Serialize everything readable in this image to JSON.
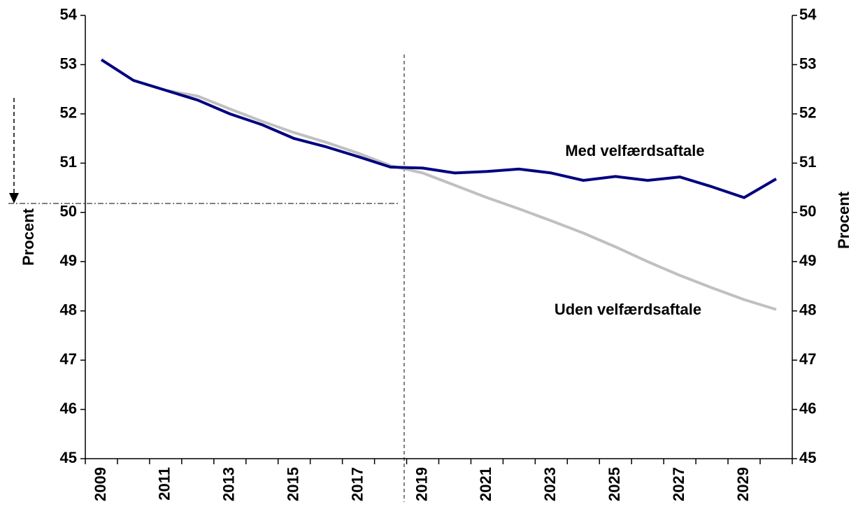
{
  "chart_data": {
    "type": "line",
    "categories": [
      "2009",
      null,
      "2011",
      null,
      "2013",
      null,
      "2015",
      null,
      "2017",
      null,
      "2019",
      null,
      "2021",
      null,
      "2023",
      null,
      "2025",
      null,
      "2027",
      null,
      "2029",
      null
    ],
    "series": [
      {
        "name": "Med velfærdsaftale",
        "color": "#000080",
        "values": [
          53.1,
          52.68,
          52.48,
          52.28,
          52.0,
          51.78,
          51.5,
          51.33,
          51.13,
          50.92,
          50.9,
          50.8,
          50.83,
          50.88,
          50.8,
          50.65,
          50.73,
          50.65,
          50.72,
          50.52,
          50.3,
          50.68
        ]
      },
      {
        "name": "Uden velfærdsaftale",
        "color": "#c0c0c0",
        "values": [
          53.1,
          52.68,
          52.48,
          52.36,
          52.1,
          51.85,
          51.62,
          51.42,
          51.2,
          50.95,
          50.8,
          50.55,
          50.3,
          50.07,
          49.83,
          49.58,
          49.3,
          49.0,
          48.72,
          48.47,
          48.23,
          48.03
        ]
      }
    ],
    "ylabel": "Procent",
    "y2label": "Procent",
    "ylim": [
      45,
      54
    ],
    "yticks": [
      45,
      46,
      47,
      48,
      49,
      50,
      51,
      52,
      53,
      54
    ],
    "y2lim": [
      45,
      54
    ],
    "y2ticks": [
      45,
      46,
      47,
      48,
      49,
      50,
      51,
      52,
      53,
      54
    ]
  }
}
